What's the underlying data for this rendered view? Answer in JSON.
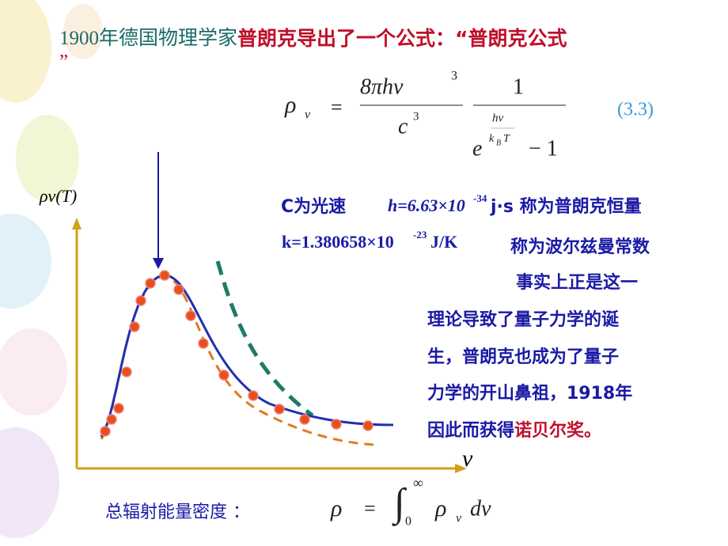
{
  "title": {
    "part1": "1900年德国物理学家",
    "part2": "普朗克导出了一个公式：“普朗克公式",
    "part3": "”"
  },
  "formula": {
    "rho": "ρ",
    "sub_nu": "ν",
    "equals": "=",
    "numerator": "8πhν",
    "num_exp": "3",
    "den_c": "c",
    "den_exp": "3",
    "one": "1",
    "e": "e",
    "exp_top": "hν",
    "exp_k": "k",
    "exp_B": "B",
    "exp_T": "T",
    "minus_one": "− 1",
    "number": "(3.3)"
  },
  "constants": {
    "c_text": "C为光速",
    "h_text": "h=6.63×10",
    "h_exp": "-34",
    "h_unit": "j·s 称为普朗克恒量",
    "k_text": "k=1.380658×10",
    "k_exp": "-23",
    "k_unit": "J/K",
    "k_name": "称为波尔兹曼常数"
  },
  "paragraph": {
    "lines": [
      "事实上正是这一",
      "理论导致了量子力学的诞",
      "生，普朗克也成为了量子",
      "力学的开山鼻祖，1918年",
      "因此而获得"
    ],
    "highlight": "诺贝尔奖。"
  },
  "plot": {
    "y_label": "ρν(T)",
    "x_label": "ν"
  },
  "bottom": {
    "label": "总辐射能量密度 ：",
    "rho": "ρ",
    "equals": "=",
    "integral": "∫",
    "upper": "∞",
    "lower": "0",
    "rho2": "ρ",
    "sub": "ν",
    "d": "dν"
  }
}
